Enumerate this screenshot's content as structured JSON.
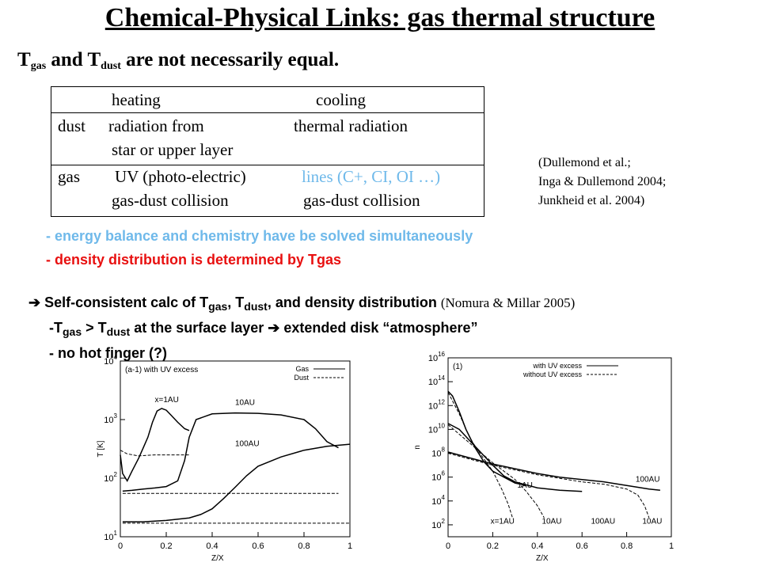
{
  "title": "Chemical-Physical Links: gas thermal structure",
  "subtitle": {
    "t1": "T",
    "sub1": "gas",
    "mid": " and T",
    "sub2": "dust",
    "end": " are not necessarily equal."
  },
  "table": {
    "header_heating": "heating",
    "header_cooling": "cooling",
    "dust_label": "dust",
    "dust_heating_1": "radiation from",
    "dust_heating_2": "star or upper layer",
    "dust_cooling": "thermal radiation",
    "gas_label": "gas",
    "gas_heating_1": "UV (photo-electric)",
    "gas_heating_2": "gas-dust collision",
    "gas_cooling_1": "lines (C+, CI, OI …)",
    "gas_cooling_2": "gas-dust collision"
  },
  "references": [
    "(Dullemond et al.;",
    "Inga & Dullemond 2004;",
    "Junkheid et al. 2004)"
  ],
  "bullets": {
    "b1": "- energy balance and chemistry have be solved simultaneously",
    "b2": "- density distribution is determined by Tgas"
  },
  "conclusion": {
    "arrow": "➔",
    "l1_a": " Self-consistent calc of T",
    "l1_sub1": "gas",
    "l1_b": ", T",
    "l1_sub2": "dust",
    "l1_c": ", and density distribution ",
    "l1_note": "(Nomura & Millar 2005)",
    "l2_a": "-T",
    "l2_sub1": "gas",
    "l2_b": " > T",
    "l2_sub2": "dust",
    "l2_c": " at the surface layer ",
    "l2_arrow": "➔",
    "l2_d": " extended disk “atmosphere”",
    "l3": "- no hot finger (?)"
  },
  "colors": {
    "blue": "#6fb9ea",
    "red": "#e81010"
  },
  "chart_data": [
    {
      "type": "line",
      "panel_label": "(a-1) with UV excess",
      "xlabel": "Z/X",
      "ylabel": "T [K]",
      "xlim": [
        0,
        1
      ],
      "ylim_log10": [
        1,
        4
      ],
      "x_ticks": [
        "0",
        "0.2",
        "0.4",
        "0.6",
        "0.8",
        "1"
      ],
      "y_ticks": [
        {
          "base": "10",
          "exp": "1"
        },
        {
          "base": "10",
          "exp": "2"
        },
        {
          "base": "10",
          "exp": "3"
        },
        {
          "base": "10",
          "exp": "4"
        }
      ],
      "legend": [
        {
          "name": "Gas",
          "style": "solid"
        },
        {
          "name": "Dust",
          "style": "dashed"
        }
      ],
      "annotations": [
        "x=1AU",
        "10AU",
        "100AU"
      ],
      "series": [
        {
          "label": "x=1AU",
          "kind": "gas",
          "points": [
            [
              0,
              250
            ],
            [
              0.01,
              120
            ],
            [
              0.03,
              90
            ],
            [
              0.05,
              130
            ],
            [
              0.08,
              220
            ],
            [
              0.1,
              330
            ],
            [
              0.12,
              500
            ],
            [
              0.14,
              900
            ],
            [
              0.16,
              1400
            ],
            [
              0.18,
              1550
            ],
            [
              0.2,
              1450
            ],
            [
              0.22,
              1200
            ],
            [
              0.25,
              900
            ],
            [
              0.28,
              700
            ],
            [
              0.3,
              650
            ]
          ]
        },
        {
          "label": "x=1AU",
          "kind": "dust",
          "points": [
            [
              0,
              300
            ],
            [
              0.03,
              260
            ],
            [
              0.08,
              240
            ],
            [
              0.15,
              250
            ],
            [
              0.3,
              250
            ]
          ]
        },
        {
          "label": "10AU",
          "kind": "gas",
          "points": [
            [
              0.01,
              60
            ],
            [
              0.05,
              62
            ],
            [
              0.1,
              65
            ],
            [
              0.15,
              68
            ],
            [
              0.2,
              72
            ],
            [
              0.25,
              90
            ],
            [
              0.28,
              200
            ],
            [
              0.3,
              500
            ],
            [
              0.33,
              1000
            ],
            [
              0.4,
              1250
            ],
            [
              0.5,
              1300
            ],
            [
              0.6,
              1280
            ],
            [
              0.7,
              1200
            ],
            [
              0.8,
              1000
            ],
            [
              0.85,
              700
            ],
            [
              0.9,
              420
            ],
            [
              0.95,
              330
            ]
          ]
        },
        {
          "label": "10AU",
          "kind": "dust",
          "points": [
            [
              0.01,
              55
            ],
            [
              0.2,
              55
            ],
            [
              0.5,
              55
            ],
            [
              0.8,
              55
            ],
            [
              0.95,
              55
            ]
          ]
        },
        {
          "label": "100AU",
          "kind": "gas",
          "points": [
            [
              0.01,
              18
            ],
            [
              0.1,
              18
            ],
            [
              0.2,
              19
            ],
            [
              0.3,
              21
            ],
            [
              0.35,
              24
            ],
            [
              0.4,
              30
            ],
            [
              0.45,
              45
            ],
            [
              0.5,
              70
            ],
            [
              0.55,
              110
            ],
            [
              0.6,
              160
            ],
            [
              0.7,
              230
            ],
            [
              0.8,
              300
            ],
            [
              0.9,
              350
            ],
            [
              1.0,
              380
            ]
          ]
        },
        {
          "label": "100AU",
          "kind": "dust",
          "points": [
            [
              0.01,
              17
            ],
            [
              0.3,
              17
            ],
            [
              0.6,
              17
            ],
            [
              0.9,
              17
            ],
            [
              1.0,
              17
            ]
          ]
        }
      ]
    },
    {
      "type": "line",
      "panel_label": "(1)",
      "xlabel": "Z/X",
      "ylabel": "n_tot [cm^-3]",
      "xlim": [
        0,
        1
      ],
      "ylim_log10": [
        1,
        16
      ],
      "x_ticks": [
        "0",
        "0.2",
        "0.4",
        "0.6",
        "0.8",
        "1"
      ],
      "y_ticks": [
        {
          "base": "10",
          "exp": "2"
        },
        {
          "base": "10",
          "exp": "4"
        },
        {
          "base": "10",
          "exp": "6"
        },
        {
          "base": "10",
          "exp": "8"
        },
        {
          "base": "10",
          "exp": "10"
        },
        {
          "base": "10",
          "exp": "12"
        },
        {
          "base": "10",
          "exp": "14"
        },
        {
          "base": "10",
          "exp": "16"
        }
      ],
      "legend": [
        {
          "name": "with UV excess",
          "style": "solid"
        },
        {
          "name": "without UV excess",
          "style": "dashed"
        }
      ],
      "annotations": [
        "1AU",
        "x=1AU",
        "10AU",
        "100AU",
        "100AU",
        "10AU"
      ],
      "series": [
        {
          "label": "1AU",
          "kind": "with",
          "log10": [
            [
              0,
              13.2
            ],
            [
              0.02,
              12.8
            ],
            [
              0.05,
              11.5
            ],
            [
              0.08,
              10
            ],
            [
              0.12,
              8.5
            ],
            [
              0.16,
              7.3
            ],
            [
              0.2,
              6.5
            ],
            [
              0.25,
              6
            ],
            [
              0.3,
              5.5
            ],
            [
              0.35,
              5.3
            ]
          ]
        },
        {
          "label": "1AU",
          "kind": "without",
          "log10": [
            [
              0,
              13.1
            ],
            [
              0.05,
              11.3
            ],
            [
              0.1,
              9.2
            ],
            [
              0.15,
              7.8
            ],
            [
              0.2,
              6.5
            ],
            [
              0.24,
              5
            ],
            [
              0.27,
              3.7
            ],
            [
              0.29,
              2.5
            ]
          ]
        },
        {
          "label": "10AU",
          "kind": "with",
          "log10": [
            [
              0,
              10.5
            ],
            [
              0.05,
              10
            ],
            [
              0.1,
              9
            ],
            [
              0.15,
              8
            ],
            [
              0.2,
              7
            ],
            [
              0.25,
              6.1
            ],
            [
              0.3,
              5.6
            ],
            [
              0.4,
              5.1
            ],
            [
              0.5,
              4.9
            ],
            [
              0.6,
              4.8
            ]
          ]
        },
        {
          "label": "10AU",
          "kind": "without",
          "log10": [
            [
              0,
              10.4
            ],
            [
              0.1,
              8.8
            ],
            [
              0.2,
              7.2
            ],
            [
              0.3,
              5.8
            ],
            [
              0.35,
              4.8
            ],
            [
              0.4,
              3.6
            ],
            [
              0.43,
              2.6
            ]
          ]
        },
        {
          "label": "100AU",
          "kind": "with",
          "log10": [
            [
              0,
              8.1
            ],
            [
              0.1,
              7.6
            ],
            [
              0.2,
              7.1
            ],
            [
              0.3,
              6.7
            ],
            [
              0.4,
              6.3
            ],
            [
              0.5,
              6
            ],
            [
              0.6,
              5.8
            ],
            [
              0.7,
              5.6
            ],
            [
              0.8,
              5.3
            ],
            [
              0.9,
              5
            ],
            [
              0.95,
              4.9
            ]
          ]
        },
        {
          "label": "100AU",
          "kind": "without",
          "log10": [
            [
              0,
              8
            ],
            [
              0.1,
              7.5
            ],
            [
              0.2,
              7
            ],
            [
              0.3,
              6.6
            ],
            [
              0.4,
              6.2
            ],
            [
              0.5,
              5.9
            ],
            [
              0.6,
              5.6
            ],
            [
              0.7,
              5.4
            ],
            [
              0.8,
              5
            ],
            [
              0.85,
              4.5
            ],
            [
              0.88,
              3.6
            ],
            [
              0.9,
              2.6
            ]
          ]
        }
      ]
    }
  ]
}
